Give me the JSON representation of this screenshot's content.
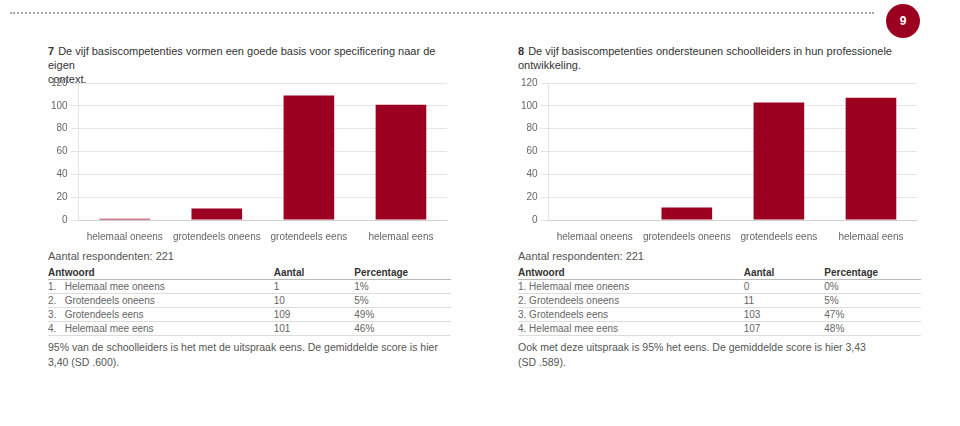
{
  "page_number": "9",
  "chart_data": [
    {
      "type": "bar",
      "title": "7 De vijf basiscompetenties vormen een goede basis voor specificering naar de eigen\ncontext.",
      "categories": [
        "helemaal oneens",
        "grotendeels oneens",
        "grotendeels eens",
        "helemaal eens"
      ],
      "values": [
        1,
        10,
        109,
        101
      ],
      "color": "#9B0020",
      "ylim": [
        0,
        120
      ],
      "yticks": [
        0,
        20,
        40,
        60,
        80,
        100,
        120
      ],
      "grid": true,
      "annotations": [
        "Aantal respondenten: 221",
        "95% van de schoolleiders is het met de uitspraak eens. De gemiddelde score is hier\n3,40 (SD .600)."
      ],
      "table": {
        "header": [
          "Antwoord",
          "Aantal",
          "Percentage"
        ],
        "rows": [
          [
            "1.   Helemaal mee oneens",
            "1",
            "1%"
          ],
          [
            "2.   Grotendeels oneens",
            "10",
            "5%"
          ],
          [
            "3.   Grotendeels eens",
            "109",
            "49%"
          ],
          [
            "4.   Helemaal mee eens",
            "101",
            "46%"
          ]
        ]
      }
    },
    {
      "type": "bar",
      "title": "8 De vijf basiscompetenties ondersteunen schoolleiders in hun professionele ontwikkeling.",
      "categories": [
        "helemaal oneens",
        "grotendeels oneens",
        "grotendeels eens",
        "helemaal eens"
      ],
      "values": [
        0,
        11,
        103,
        107
      ],
      "color": "#9B0020",
      "ylim": [
        0,
        120
      ],
      "yticks": [
        0,
        20,
        40,
        60,
        80,
        100,
        120
      ],
      "grid": true,
      "annotations": [
        "Aantal respondenten: 221",
        "Ook met deze uitspraak is 95% het eens. De gemiddelde score is hier 3,43\n(SD .589)."
      ],
      "table": {
        "header": [
          "Antwoord",
          "Aantal",
          "Percentage"
        ],
        "rows": [
          [
            "1. Helemaal mee oneens",
            "0",
            "0%"
          ],
          [
            "2. Grotendeels oneens",
            "11",
            "5%"
          ],
          [
            "3. Grotendeels eens",
            "103",
            "47%"
          ],
          [
            "4. Helemaal mee eens",
            "107",
            "48%"
          ]
        ]
      }
    }
  ]
}
